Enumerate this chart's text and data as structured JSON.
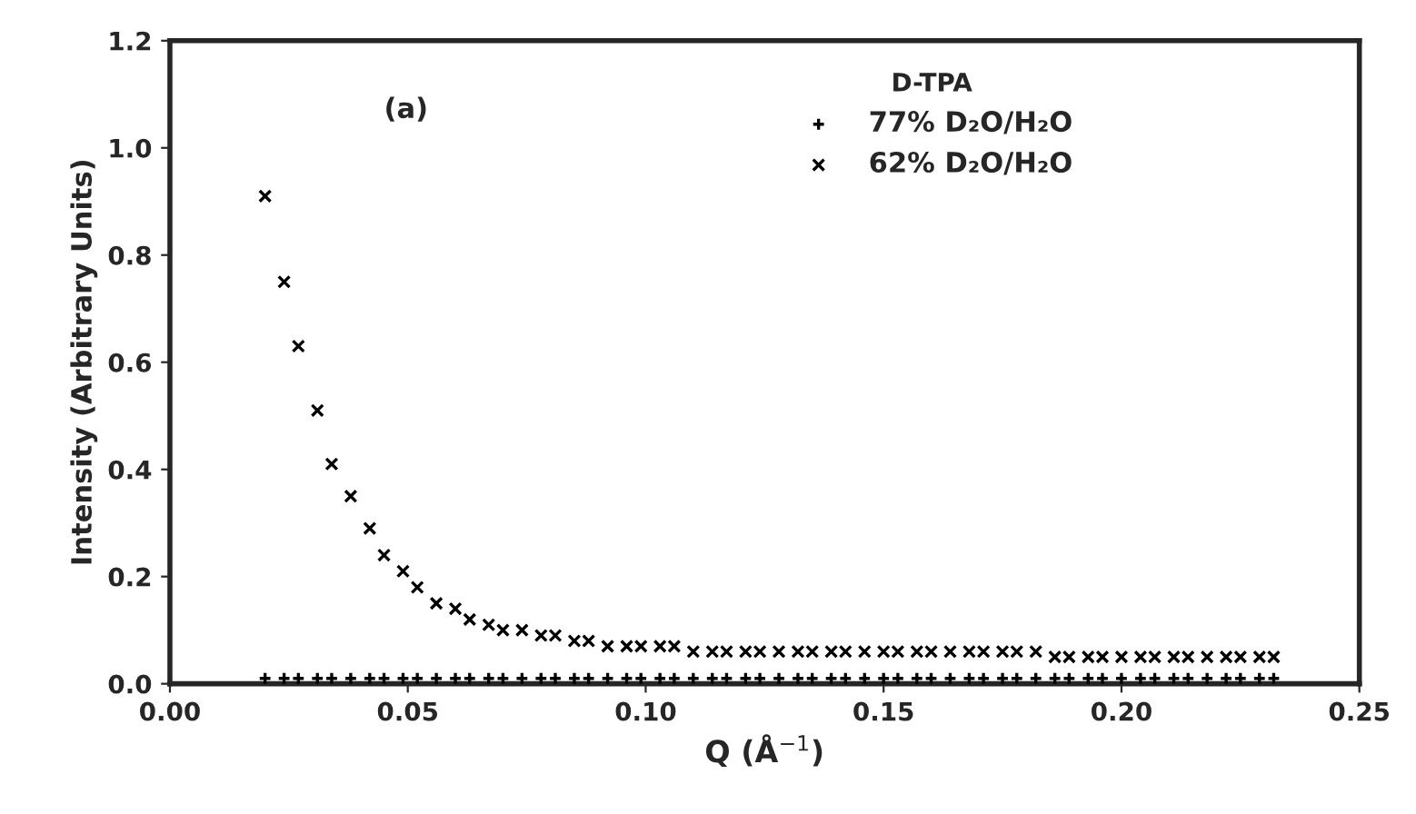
{
  "chart_data": {
    "type": "scatter",
    "xlabel": "Q (Å$^{−1}$)",
    "ylabel": "Intensity (Arbitrary Units)",
    "legend_title": "D-TPA",
    "annotations": [
      "(a)"
    ],
    "x": [
      0.02,
      0.024,
      0.027,
      0.031,
      0.034,
      0.038,
      0.042,
      0.045,
      0.049,
      0.052,
      0.056,
      0.06,
      0.063,
      0.067,
      0.07,
      0.074,
      0.078,
      0.081,
      0.085,
      0.088,
      0.092,
      0.096,
      0.099,
      0.103,
      0.106,
      0.11,
      0.114,
      0.117,
      0.121,
      0.124,
      0.128,
      0.132,
      0.135,
      0.139,
      0.142,
      0.146,
      0.15,
      0.153,
      0.157,
      0.16,
      0.164,
      0.168,
      0.171,
      0.175,
      0.178,
      0.182,
      0.186,
      0.189,
      0.193,
      0.196,
      0.2,
      0.204,
      0.207,
      0.211,
      0.214,
      0.218,
      0.222,
      0.225,
      0.229,
      0.232
    ],
    "series": [
      {
        "name": "77% D₂O/H₂O",
        "color": "#000000",
        "marker": "plus",
        "values": [
          0.01,
          0.01,
          0.01,
          0.01,
          0.01,
          0.01,
          0.01,
          0.01,
          0.01,
          0.01,
          0.01,
          0.01,
          0.01,
          0.01,
          0.01,
          0.01,
          0.01,
          0.01,
          0.01,
          0.01,
          0.01,
          0.01,
          0.01,
          0.01,
          0.01,
          0.01,
          0.01,
          0.01,
          0.01,
          0.01,
          0.01,
          0.01,
          0.01,
          0.01,
          0.01,
          0.01,
          0.01,
          0.01,
          0.01,
          0.01,
          0.01,
          0.01,
          0.01,
          0.01,
          0.01,
          0.01,
          0.01,
          0.01,
          0.01,
          0.01,
          0.01,
          0.01,
          0.01,
          0.01,
          0.01,
          0.01,
          0.01,
          0.01,
          0.01,
          0.01
        ]
      },
      {
        "name": "62% D₂O/H₂O",
        "color": "#000000",
        "marker": "cross",
        "values": [
          0.91,
          0.75,
          0.63,
          0.51,
          0.41,
          0.35,
          0.29,
          0.24,
          0.21,
          0.18,
          0.15,
          0.14,
          0.12,
          0.11,
          0.1,
          0.1,
          0.09,
          0.09,
          0.08,
          0.08,
          0.07,
          0.07,
          0.07,
          0.07,
          0.07,
          0.06,
          0.06,
          0.06,
          0.06,
          0.06,
          0.06,
          0.06,
          0.06,
          0.06,
          0.06,
          0.06,
          0.06,
          0.06,
          0.06,
          0.06,
          0.06,
          0.06,
          0.06,
          0.06,
          0.06,
          0.06,
          0.05,
          0.05,
          0.05,
          0.05,
          0.05,
          0.05,
          0.05,
          0.05,
          0.05,
          0.05,
          0.05,
          0.05,
          0.05,
          0.05
        ]
      }
    ],
    "xlim": [
      0,
      0.25
    ],
    "ylim": [
      0,
      1.2
    ],
    "xticks": [
      {
        "value": 0,
        "label": "0.00"
      },
      0.05,
      {
        "value": 0.1,
        "label": "0.10"
      },
      0.15,
      {
        "value": 0.2,
        "label": "0.20"
      },
      0.25
    ],
    "yticks": [
      {
        "value": 0,
        "label": "0.0"
      },
      0.2,
      0.4,
      0.6,
      0.8,
      {
        "value": 1,
        "label": "1.0"
      },
      1.2
    ],
    "grid": false,
    "legend": "top right"
  }
}
